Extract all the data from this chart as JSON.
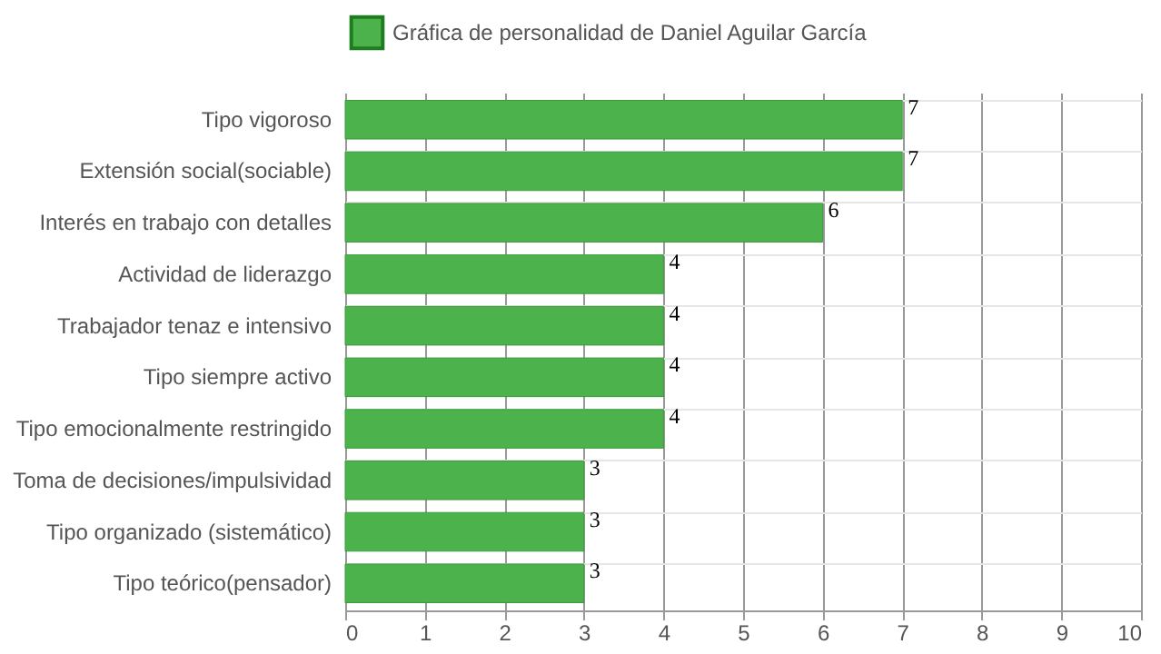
{
  "chart_data": {
    "type": "bar",
    "orientation": "horizontal",
    "categories": [
      "Tipo vigoroso",
      "Extensión social(sociable)",
      "Interés en trabajo con detalles",
      "Actividad de liderazgo",
      "Trabajador tenaz e intensivo",
      "Tipo siempre activo",
      "Tipo emocionalmente restringido",
      "Toma de decisiones/impulsividad",
      "Tipo organizado (sistemático)",
      "Tipo teórico(pensador)"
    ],
    "series": [
      {
        "name": "Gráfica de personalidad de Daniel Aguilar García",
        "color": "#4cb34c",
        "values": [
          7,
          7,
          6,
          4,
          4,
          4,
          4,
          3,
          3,
          3
        ]
      }
    ],
    "xlim": [
      0,
      10
    ],
    "xticks": [
      0,
      1,
      2,
      3,
      4,
      5,
      6,
      7,
      8,
      9,
      10
    ],
    "grid": true,
    "legend": "top",
    "data_labels": true
  }
}
